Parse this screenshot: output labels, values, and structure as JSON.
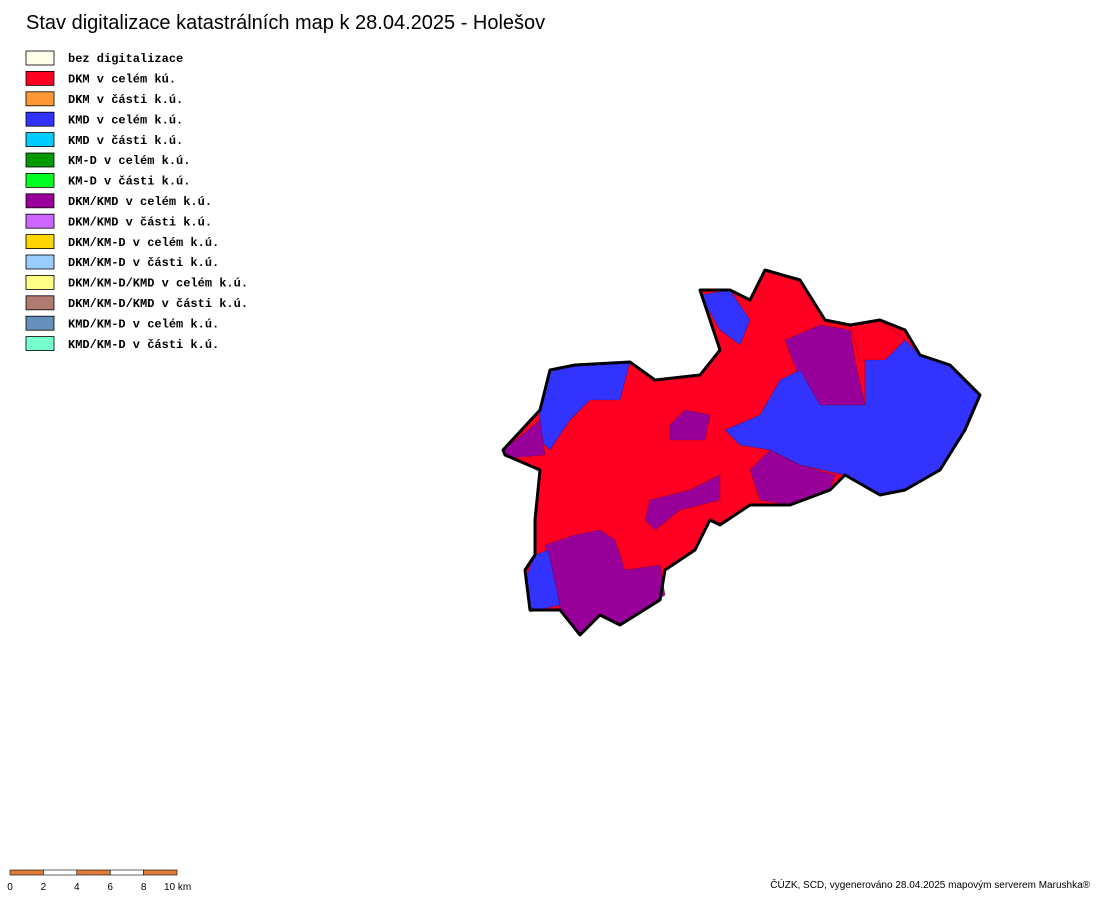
{
  "title": "Stav digitalizace katastrálních map k 28.04.2025 - Holešov",
  "legend": [
    {
      "label": "bez digitalizace",
      "color": "#ffffe8"
    },
    {
      "label": "DKM v celém kú.",
      "color": "#ff0022"
    },
    {
      "label": "DKM v části k.ú.",
      "color": "#ff9933"
    },
    {
      "label": "KMD v celém k.ú.",
      "color": "#3333ff"
    },
    {
      "label": "KMD v části k.ú.",
      "color": "#00ccff"
    },
    {
      "label": "KM-D v celém k.ú.",
      "color": "#009900"
    },
    {
      "label": "KM-D v části k.ú.",
      "color": "#00ff22"
    },
    {
      "label": "DKM/KMD v celém k.ú.",
      "color": "#990099"
    },
    {
      "label": "DKM/KMD v části k.ú.",
      "color": "#cc66ff"
    },
    {
      "label": "DKM/KM-D v celém k.ú.",
      "color": "#ffd700"
    },
    {
      "label": "DKM/KM-D v části k.ú.",
      "color": "#99ccff"
    },
    {
      "label": "DKM/KM-D/KMD v celém k.ú.",
      "color": "#ffff88"
    },
    {
      "label": "DKM/KM-D/KMD v části k.ú.",
      "color": "#b07a6e"
    },
    {
      "label": "KMD/KM-D v celém k.ú.",
      "color": "#6690bb"
    },
    {
      "label": "KMD/KM-D v části k.ú.",
      "color": "#77ffcc"
    }
  ],
  "scale": {
    "labels": [
      "0",
      "2",
      "4",
      "6",
      "8",
      "10 km"
    ],
    "colors": [
      "#e07b39",
      "#ffffff"
    ]
  },
  "footer": "ČÚZK, SCD, vygenerováno 28.04.2025 mapovým serverem Marushka®"
}
